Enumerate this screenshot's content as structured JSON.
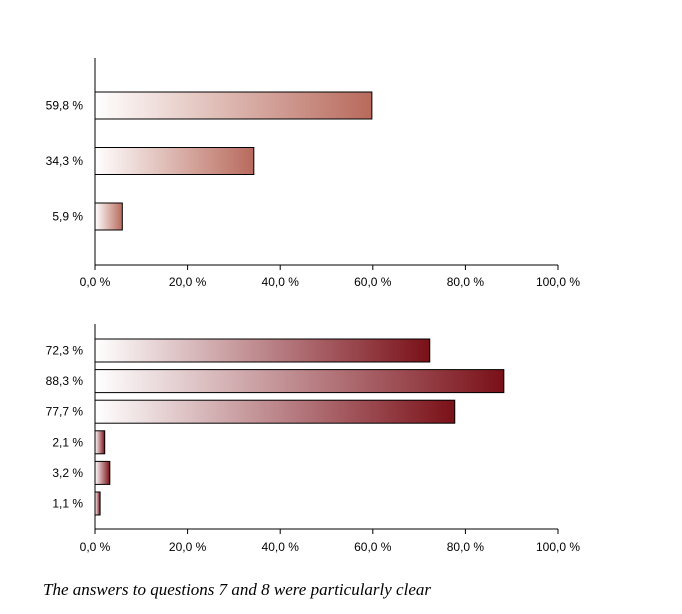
{
  "chart_data": [
    {
      "type": "bar",
      "orientation": "horizontal",
      "categories": [
        "59,8 %",
        "34,3 %",
        "5,9 %"
      ],
      "values": [
        59.8,
        34.3,
        5.9
      ],
      "xlim": [
        0,
        100
      ],
      "xticks": [
        "0,0 %",
        "20,0 %",
        "40,0 %",
        "60,0 %",
        "80,0 %",
        "100,0 %"
      ],
      "title": "",
      "xlabel": "",
      "ylabel": "",
      "grid": false,
      "bar_gradient": [
        "#ffffff",
        "#b86a5c"
      ]
    },
    {
      "type": "bar",
      "orientation": "horizontal",
      "categories": [
        "72,3 %",
        "88,3 %",
        "77,7 %",
        "2,1 %",
        "3,2 %",
        "1,1 %"
      ],
      "values": [
        72.3,
        88.3,
        77.7,
        2.1,
        3.2,
        1.1
      ],
      "xlim": [
        0,
        100
      ],
      "xticks": [
        "0,0 %",
        "20,0 %",
        "40,0 %",
        "60,0 %",
        "80,0 %",
        "100,0 %"
      ],
      "title": "",
      "xlabel": "",
      "ylabel": "",
      "grid": false,
      "bar_gradient": [
        "#ffffff",
        "#7a1018"
      ]
    }
  ],
  "caption": "The answers to questions 7 and 8 were particularly clear"
}
